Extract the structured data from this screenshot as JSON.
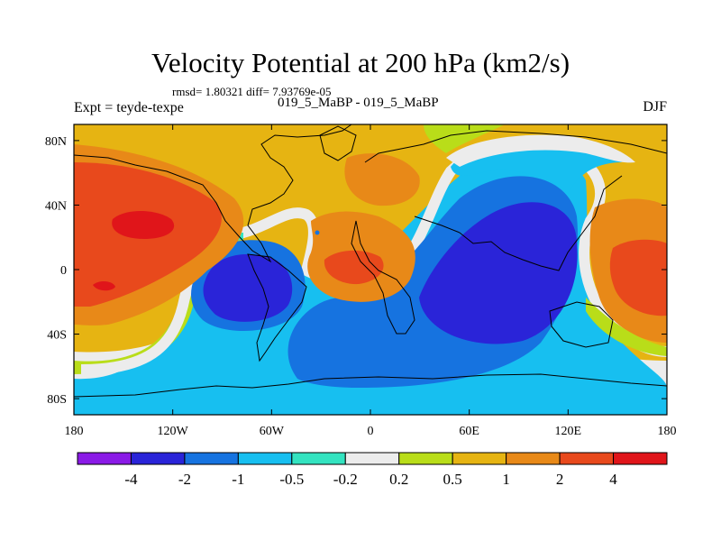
{
  "chart_data": {
    "type": "heatmap",
    "title": "Velocity Potential at 200 hPa (km2/s)",
    "stats_line": "rmsd= 1.80321 diff= 7.93769e-05",
    "left_label": "Expt = teyde-texpe",
    "center_label": "019_5_MaBP - 019_5_MaBP",
    "right_label": "DJF",
    "xlabel": "",
    "ylabel": "",
    "x_range": [
      -180,
      180
    ],
    "y_range": [
      -90,
      90
    ],
    "x_ticks": [
      {
        "value": -180,
        "label": "180"
      },
      {
        "value": -120,
        "label": "120W"
      },
      {
        "value": -60,
        "label": "60W"
      },
      {
        "value": 0,
        "label": "0"
      },
      {
        "value": 60,
        "label": "60E"
      },
      {
        "value": 120,
        "label": "120E"
      },
      {
        "value": 180,
        "label": "180"
      }
    ],
    "y_ticks": [
      {
        "value": 80,
        "label": "80N"
      },
      {
        "value": 40,
        "label": "40N"
      },
      {
        "value": 0,
        "label": "0"
      },
      {
        "value": -40,
        "label": "40S"
      },
      {
        "value": -80,
        "label": "80S"
      }
    ],
    "colorbar": {
      "labels": [
        "-4",
        "-2",
        "-1",
        "-0.5",
        "-0.2",
        "0.2",
        "0.5",
        "1",
        "2",
        "4"
      ],
      "colors": [
        "#8a1ae6",
        "#2a24d8",
        "#1673e0",
        "#17bff0",
        "#33e3c0",
        "#ececec",
        "#b9dd19",
        "#e6b412",
        "#e88918",
        "#e8491c",
        "#e0151a"
      ]
    },
    "field_features": [
      {
        "name": "pacific-high-center",
        "lon": -140,
        "lat": 28,
        "value": 3
      },
      {
        "name": "atlantic-high-center",
        "lon": -5,
        "lat": 0,
        "value": 2
      },
      {
        "name": "north-africa-high",
        "lon": 10,
        "lat": 42,
        "value": 1
      },
      {
        "name": "east-pacific-high",
        "lon": 165,
        "lat": 0,
        "value": 1.5
      },
      {
        "name": "south-america-low-center",
        "lon": -65,
        "lat": -8,
        "value": -2.5
      },
      {
        "name": "indian-ocean-low-center",
        "lon": 90,
        "lat": -10,
        "value": -2.5
      }
    ]
  }
}
